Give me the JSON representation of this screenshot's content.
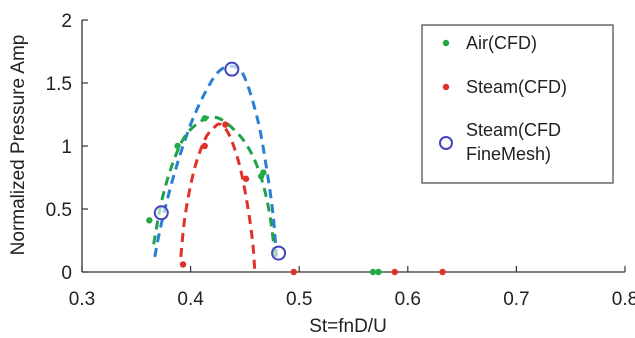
{
  "chart_data": {
    "type": "scatter",
    "title": "",
    "xlabel": "St=fnD/U",
    "ylabel": "Normalized Pressure Amp",
    "xlim": [
      0.3,
      0.8
    ],
    "ylim": [
      0,
      2
    ],
    "xticks": [
      0.3,
      0.4,
      0.5,
      0.6,
      0.7,
      0.8
    ],
    "yticks": [
      0,
      0.5,
      1,
      1.5,
      2
    ],
    "xtick_labels": [
      "0.3",
      "0.4",
      "0.5",
      "0.6",
      "0.7",
      "0.8"
    ],
    "ytick_labels": [
      "0",
      "0.5",
      "1",
      "1.5",
      "2"
    ],
    "grid": false,
    "legend_position": "top-right",
    "series": [
      {
        "name": "Air(CFD)",
        "color": "#22aa44",
        "marker": "dot",
        "points": [
          [
            0.362,
            0.41
          ],
          [
            0.388,
            1.0
          ],
          [
            0.413,
            1.22
          ],
          [
            0.465,
            0.76
          ],
          [
            0.467,
            0.79
          ],
          [
            0.568,
            0.0
          ],
          [
            0.573,
            0.0
          ]
        ]
      },
      {
        "name": "Steam(CFD)",
        "color": "#e0302a",
        "marker": "dot",
        "points": [
          [
            0.393,
            0.06
          ],
          [
            0.413,
            1.0
          ],
          [
            0.432,
            1.17
          ],
          [
            0.451,
            0.74
          ],
          [
            0.495,
            0.0
          ],
          [
            0.588,
            0.0
          ],
          [
            0.632,
            0.0
          ]
        ]
      },
      {
        "name_lines": [
          "Steam(CFD",
          "FineMesh)"
        ],
        "color": "#4444bb",
        "marker": "circle",
        "points": [
          [
            0.373,
            0.47
          ],
          [
            0.438,
            1.61
          ],
          [
            0.481,
            0.15
          ]
        ]
      }
    ],
    "curves": [
      {
        "color": "#2a7fd0",
        "points": [
          [
            0.367,
            0.12
          ],
          [
            0.373,
            0.38
          ],
          [
            0.385,
            0.78
          ],
          [
            0.4,
            1.17
          ],
          [
            0.415,
            1.45
          ],
          [
            0.427,
            1.6
          ],
          [
            0.44,
            1.63
          ],
          [
            0.45,
            1.54
          ],
          [
            0.462,
            1.2
          ],
          [
            0.47,
            0.82
          ],
          [
            0.476,
            0.45
          ],
          [
            0.479,
            0.12
          ]
        ]
      },
      {
        "color": "#22a04a",
        "points": [
          [
            0.366,
            0.22
          ],
          [
            0.373,
            0.55
          ],
          [
            0.383,
            0.85
          ],
          [
            0.395,
            1.08
          ],
          [
            0.41,
            1.2
          ],
          [
            0.42,
            1.23
          ],
          [
            0.432,
            1.19
          ],
          [
            0.45,
            1.03
          ],
          [
            0.463,
            0.8
          ],
          [
            0.472,
            0.5
          ],
          [
            0.478,
            0.12
          ]
        ]
      },
      {
        "color": "#e0302a",
        "points": [
          [
            0.391,
            0.12
          ],
          [
            0.395,
            0.45
          ],
          [
            0.403,
            0.8
          ],
          [
            0.413,
            1.05
          ],
          [
            0.422,
            1.15
          ],
          [
            0.428,
            1.17
          ],
          [
            0.436,
            1.08
          ],
          [
            0.445,
            0.85
          ],
          [
            0.452,
            0.55
          ],
          [
            0.457,
            0.25
          ],
          [
            0.459,
            0.02
          ]
        ]
      }
    ]
  }
}
